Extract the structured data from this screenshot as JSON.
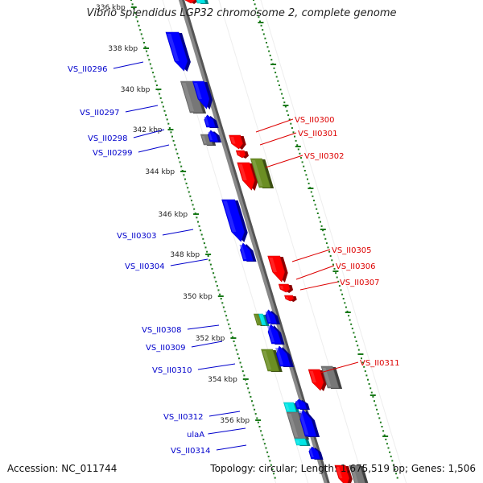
{
  "title": "Vibrio splendidus LGP32 chromosome 2, complete genome",
  "footer": {
    "accession": "Accession: NC_011744",
    "summary": "Topology: circular; Length: 1,675,519 bp; Genes: 1,506"
  },
  "colors": {
    "forward_strand": "#0000ff",
    "reverse_strand": "#ff0000",
    "gray_feature": "#777777",
    "olive_feature": "#6b8e23",
    "cyan_feature": "#00e5e5",
    "tick": "#1a7a1a",
    "backbone": "#888888"
  },
  "kbp_labels": [
    "336 kbp",
    "338 kbp",
    "340 kbp",
    "342 kbp",
    "344 kbp",
    "346 kbp",
    "348 kbp",
    "350 kbp",
    "352 kbp",
    "354 kbp",
    "356 kbp"
  ],
  "left_gene_labels": [
    "VS_II0296",
    "VS_II0297",
    "VS_II0298",
    "VS_II0299",
    "VS_II0303",
    "VS_II0304",
    "VS_II0308",
    "VS_II0309",
    "VS_II0310",
    "VS_II0312",
    "ulaA",
    "VS_II0314"
  ],
  "right_gene_labels": [
    "VS_II0300",
    "VS_II0301",
    "VS_II0302",
    "VS_II0305",
    "VS_II0306",
    "VS_II0307",
    "VS_II0311"
  ]
}
